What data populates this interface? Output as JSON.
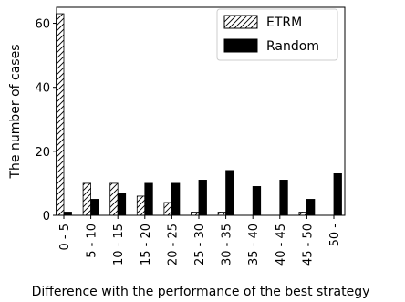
{
  "chart_data": {
    "type": "bar",
    "title": "",
    "xlabel": "Difference with the performance of the best strategy",
    "ylabel": "The number of cases",
    "categories": [
      "0 - 5",
      "5 - 10",
      "10 - 15",
      "15 - 20",
      "20 - 25",
      "25 - 30",
      "30 - 35",
      "35 - 40",
      "40 - 45",
      "45 - 50",
      "50 -"
    ],
    "series": [
      {
        "name": "ETRM",
        "values": [
          63,
          10,
          10,
          6,
          4,
          1,
          1,
          0,
          0,
          1,
          0
        ],
        "pattern": "hatch",
        "color": "#ffffff"
      },
      {
        "name": "Random",
        "values": [
          1,
          5,
          7,
          10,
          10,
          11,
          14,
          9,
          11,
          5,
          13
        ],
        "pattern": "solid",
        "color": "#000000"
      }
    ],
    "ylim": [
      0,
      65
    ],
    "yticks": [
      0,
      20,
      40,
      60
    ],
    "legend_position": "top-right",
    "grid": false
  }
}
